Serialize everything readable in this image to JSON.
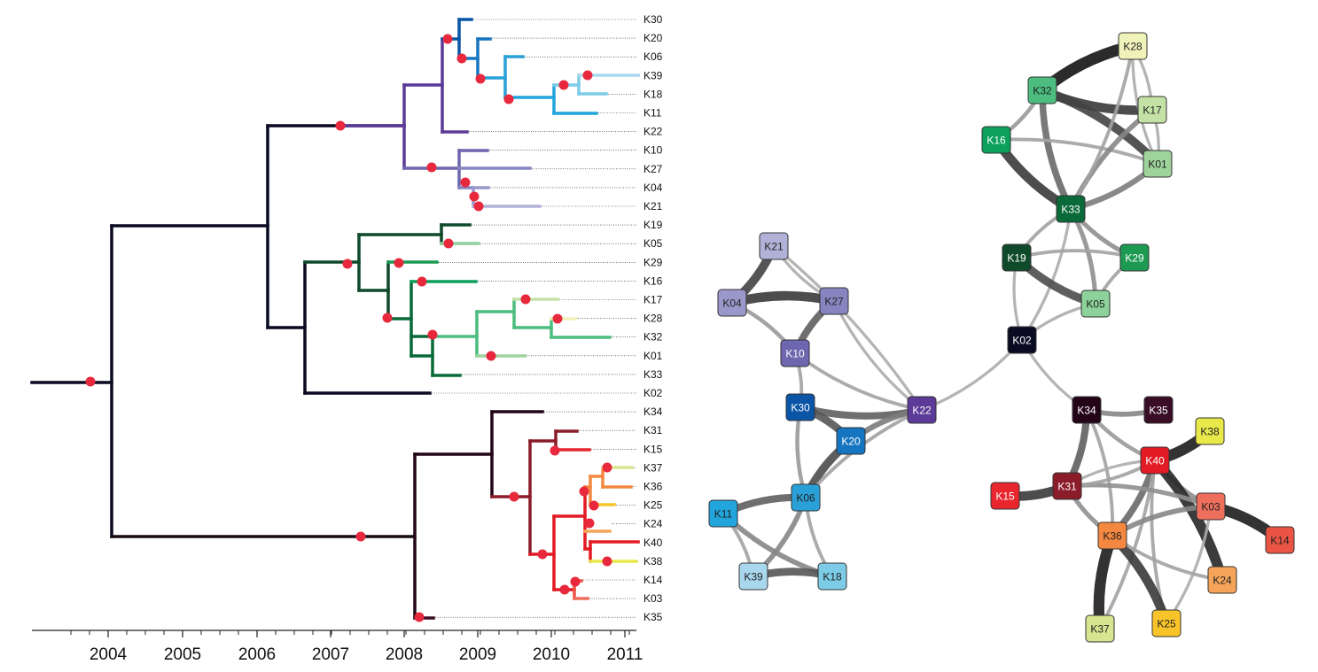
{
  "timeline": {
    "years": [
      "2004",
      "2005",
      "2006",
      "2007",
      "2008",
      "2009",
      "2010",
      "2011"
    ]
  },
  "leaves": [
    {
      "id": "K30",
      "color": "#0b55a6"
    },
    {
      "id": "K20",
      "color": "#1675c1"
    },
    {
      "id": "K06",
      "color": "#2aa0d8"
    },
    {
      "id": "K39",
      "color": "#a9d8ee"
    },
    {
      "id": "K18",
      "color": "#7ccce8"
    },
    {
      "id": "K11",
      "color": "#21a5dc"
    },
    {
      "id": "K22",
      "color": "#5c3a98"
    },
    {
      "id": "K10",
      "color": "#6e66ae"
    },
    {
      "id": "K27",
      "color": "#8785c0"
    },
    {
      "id": "K04",
      "color": "#9a98cb"
    },
    {
      "id": "K21",
      "color": "#b2b2d9"
    },
    {
      "id": "K19",
      "color": "#0f4a2b"
    },
    {
      "id": "K05",
      "color": "#8dd19b"
    },
    {
      "id": "K29",
      "color": "#1d9a52"
    },
    {
      "id": "K16",
      "color": "#0ba15d"
    },
    {
      "id": "K17",
      "color": "#c4e2a6"
    },
    {
      "id": "K28",
      "color": "#eff2b9"
    },
    {
      "id": "K32",
      "color": "#4cbd7f"
    },
    {
      "id": "K01",
      "color": "#9ed39c"
    },
    {
      "id": "K33",
      "color": "#0a6a3a"
    },
    {
      "id": "K02",
      "color": "#0a0a22"
    },
    {
      "id": "K34",
      "color": "#240518"
    },
    {
      "id": "K31",
      "color": "#8b1c2a"
    },
    {
      "id": "K15",
      "color": "#e8262e"
    },
    {
      "id": "K37",
      "color": "#d7e590"
    },
    {
      "id": "K36",
      "color": "#f48840"
    },
    {
      "id": "K25",
      "color": "#f8c42a"
    },
    {
      "id": "K24",
      "color": "#f6a45a"
    },
    {
      "id": "K40",
      "color": "#e31b25"
    },
    {
      "id": "K38",
      "color": "#e9e84a"
    },
    {
      "id": "K14",
      "color": "#eb5443"
    },
    {
      "id": "K03",
      "color": "#ee6f5c"
    },
    {
      "id": "K35",
      "color": "#3a0d27"
    }
  ],
  "network": {
    "nodes": [
      {
        "id": "K28",
        "label": "K28",
        "color": "#eff2b9"
      },
      {
        "id": "K32",
        "label": "K32",
        "color": "#4cbd7f"
      },
      {
        "id": "K17",
        "label": "K17",
        "color": "#c4e2a6"
      },
      {
        "id": "K16",
        "label": "K16",
        "color": "#0ba15d"
      },
      {
        "id": "K01",
        "label": "K01",
        "color": "#9ed39c"
      },
      {
        "id": "K33",
        "label": "K33",
        "color": "#0a6a3a"
      },
      {
        "id": "K19",
        "label": "K19",
        "color": "#0f4a2b"
      },
      {
        "id": "K29",
        "label": "K29",
        "color": "#1d9a52"
      },
      {
        "id": "K05",
        "label": "K05",
        "color": "#8dd19b"
      },
      {
        "id": "K02",
        "label": "K02",
        "color": "#0a0a22"
      },
      {
        "id": "K21",
        "label": "K21",
        "color": "#b2b2d9"
      },
      {
        "id": "K04",
        "label": "K04",
        "color": "#9a98cb"
      },
      {
        "id": "K27",
        "label": "K27",
        "color": "#8785c0"
      },
      {
        "id": "K10",
        "label": "K10",
        "color": "#6e66ae"
      },
      {
        "id": "K30",
        "label": "K30",
        "color": "#0b55a6"
      },
      {
        "id": "K22",
        "label": "K22",
        "color": "#5c3a98"
      },
      {
        "id": "K20",
        "label": "K20",
        "color": "#1675c1"
      },
      {
        "id": "K06",
        "label": "K06",
        "color": "#2aa0d8"
      },
      {
        "id": "K11",
        "label": "K11",
        "color": "#21a5dc"
      },
      {
        "id": "K39",
        "label": "K39",
        "color": "#a9d8ee"
      },
      {
        "id": "K18",
        "label": "K18",
        "color": "#7ccce8"
      },
      {
        "id": "K34",
        "label": "K34",
        "color": "#240518"
      },
      {
        "id": "K35",
        "label": "K35",
        "color": "#3a0d27"
      },
      {
        "id": "K38",
        "label": "K38",
        "color": "#e9e84a"
      },
      {
        "id": "K40",
        "label": "K40",
        "color": "#e31b25"
      },
      {
        "id": "K31",
        "label": "K31",
        "color": "#8b1c2a"
      },
      {
        "id": "K15",
        "label": "K15",
        "color": "#e8262e"
      },
      {
        "id": "K03",
        "label": "K03",
        "color": "#ee6f5c"
      },
      {
        "id": "K14",
        "label": "K14",
        "color": "#eb5443"
      },
      {
        "id": "K36",
        "label": "K36",
        "color": "#f48840"
      },
      {
        "id": "K24",
        "label": "K24",
        "color": "#f6a45a"
      },
      {
        "id": "K37",
        "label": "K37",
        "color": "#d7e590"
      },
      {
        "id": "K25",
        "label": "K25",
        "color": "#f8c42a"
      }
    ],
    "edges": [
      {
        "source": "K32",
        "target": "K28",
        "weight": 0.95
      },
      {
        "source": "K32",
        "target": "K17",
        "weight": 0.75
      },
      {
        "source": "K32",
        "target": "K01",
        "weight": 0.7
      },
      {
        "source": "K32",
        "target": "K33",
        "weight": 0.5
      },
      {
        "source": "K32",
        "target": "K16",
        "weight": 0.25
      },
      {
        "source": "K16",
        "target": "K33",
        "weight": 0.75
      },
      {
        "source": "K16",
        "target": "K01",
        "weight": 0.2
      },
      {
        "source": "K17",
        "target": "K33",
        "weight": 0.35
      },
      {
        "source": "K17",
        "target": "K01",
        "weight": 0.15
      },
      {
        "source": "K17",
        "target": "K28",
        "weight": 0.15
      },
      {
        "source": "K01",
        "target": "K33",
        "weight": 0.4
      },
      {
        "source": "K28",
        "target": "K01",
        "weight": 0.15
      },
      {
        "source": "K28",
        "target": "K33",
        "weight": 0.2
      },
      {
        "source": "K33",
        "target": "K29",
        "weight": 0.3
      },
      {
        "source": "K33",
        "target": "K05",
        "weight": 0.3
      },
      {
        "source": "K33",
        "target": "K19",
        "weight": 0.2
      },
      {
        "source": "K33",
        "target": "K02",
        "weight": 0.15
      },
      {
        "source": "K19",
        "target": "K05",
        "weight": 0.65
      },
      {
        "source": "K19",
        "target": "K29",
        "weight": 0.2
      },
      {
        "source": "K19",
        "target": "K02",
        "weight": 0.15
      },
      {
        "source": "K05",
        "target": "K29",
        "weight": 0.2
      },
      {
        "source": "K05",
        "target": "K02",
        "weight": 0.15
      },
      {
        "source": "K02",
        "target": "K22",
        "weight": 0.15
      },
      {
        "source": "K02",
        "target": "K34",
        "weight": 0.15
      },
      {
        "source": "K04",
        "target": "K27",
        "weight": 0.75
      },
      {
        "source": "K04",
        "target": "K21",
        "weight": 0.7
      },
      {
        "source": "K04",
        "target": "K10",
        "weight": 0.25
      },
      {
        "source": "K27",
        "target": "K10",
        "weight": 0.55
      },
      {
        "source": "K27",
        "target": "K21",
        "weight": 0.15
      },
      {
        "source": "K27",
        "target": "K22",
        "weight": 0.15
      },
      {
        "source": "K21",
        "target": "K22",
        "weight": 0.15
      },
      {
        "source": "K10",
        "target": "K22",
        "weight": 0.2
      },
      {
        "source": "K10",
        "target": "K30",
        "weight": 0.2
      },
      {
        "source": "K30",
        "target": "K22",
        "weight": 0.55
      },
      {
        "source": "K30",
        "target": "K20",
        "weight": 0.6
      },
      {
        "source": "K30",
        "target": "K06",
        "weight": 0.25
      },
      {
        "source": "K20",
        "target": "K22",
        "weight": 0.4
      },
      {
        "source": "K20",
        "target": "K06",
        "weight": 0.65
      },
      {
        "source": "K06",
        "target": "K22",
        "weight": 0.2
      },
      {
        "source": "K06",
        "target": "K11",
        "weight": 0.55
      },
      {
        "source": "K06",
        "target": "K39",
        "weight": 0.35
      },
      {
        "source": "K06",
        "target": "K18",
        "weight": 0.2
      },
      {
        "source": "K11",
        "target": "K39",
        "weight": 0.2
      },
      {
        "source": "K11",
        "target": "K18",
        "weight": 0.35
      },
      {
        "source": "K39",
        "target": "K18",
        "weight": 0.6
      },
      {
        "source": "K34",
        "target": "K35",
        "weight": 0.35
      },
      {
        "source": "K34",
        "target": "K31",
        "weight": 0.55
      },
      {
        "source": "K34",
        "target": "K40",
        "weight": 0.25
      },
      {
        "source": "K34",
        "target": "K36",
        "weight": 0.2
      },
      {
        "source": "K40",
        "target": "K38",
        "weight": 0.9
      },
      {
        "source": "K40",
        "target": "K36",
        "weight": 0.5
      },
      {
        "source": "K40",
        "target": "K03",
        "weight": 0.3
      },
      {
        "source": "K40",
        "target": "K24",
        "weight": 0.85
      },
      {
        "source": "K40",
        "target": "K25",
        "weight": 0.2
      },
      {
        "source": "K40",
        "target": "K37",
        "weight": 0.2
      },
      {
        "source": "K40",
        "target": "K31",
        "weight": 0.15
      },
      {
        "source": "K31",
        "target": "K15",
        "weight": 0.75
      },
      {
        "source": "K31",
        "target": "K36",
        "weight": 0.3
      },
      {
        "source": "K31",
        "target": "K03",
        "weight": 0.3
      },
      {
        "source": "K31",
        "target": "K40",
        "weight": 0.2
      },
      {
        "source": "K03",
        "target": "K14",
        "weight": 0.9
      },
      {
        "source": "K03",
        "target": "K36",
        "weight": 0.35
      },
      {
        "source": "K03",
        "target": "K25",
        "weight": 0.15
      },
      {
        "source": "K36",
        "target": "K37",
        "weight": 0.9
      },
      {
        "source": "K36",
        "target": "K25",
        "weight": 0.75
      },
      {
        "source": "K36",
        "target": "K24",
        "weight": 0.2
      }
    ]
  }
}
